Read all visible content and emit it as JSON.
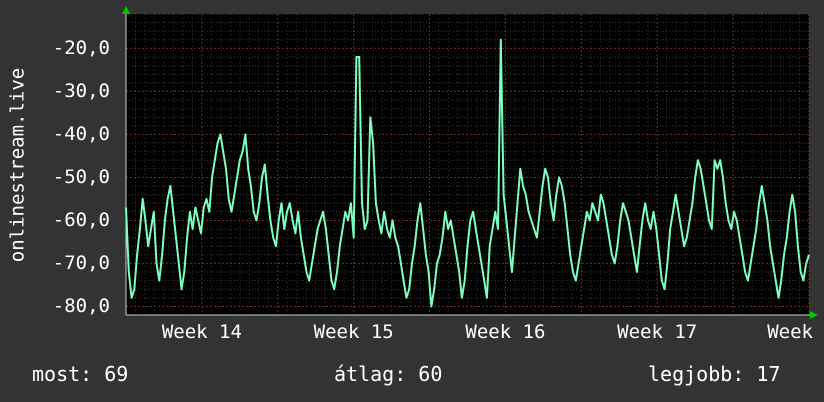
{
  "chart_data": {
    "type": "line",
    "ylabel": "onlinestream.live",
    "y_ticks": [
      -20,
      -30,
      -40,
      -50,
      -60,
      -70,
      -80
    ],
    "y_tick_labels": [
      "-20,0",
      "-30,0",
      "-40,0",
      "-50,0",
      "-60,0",
      "-70,0",
      "-80,0"
    ],
    "ylim": [
      -82,
      -12
    ],
    "x_tick_labels": [
      "Week 14",
      "Week 15",
      "Week 16",
      "Week 17",
      "Week"
    ],
    "x_tick_positions": [
      1,
      3,
      5,
      7,
      9
    ],
    "xlim": [
      0,
      9
    ],
    "grid": true,
    "colors": {
      "background": "#333333",
      "plot": "#000000",
      "grid": "#444444",
      "line": "#7fffbf",
      "axis": "#ffffff",
      "arrow": "#00cc00"
    },
    "series": [
      {
        "values": [
          -57,
          -72,
          -78,
          -76,
          -68,
          -62,
          -55,
          -60,
          -66,
          -62,
          -58,
          -70,
          -74,
          -68,
          -60,
          -55,
          -52,
          -58,
          -64,
          -70,
          -76,
          -72,
          -64,
          -58,
          -62,
          -57,
          -60,
          -63,
          -57,
          -55,
          -58,
          -50,
          -46,
          -42,
          -40,
          -44,
          -48,
          -55,
          -58,
          -54,
          -50,
          -46,
          -44,
          -40,
          -48,
          -52,
          -58,
          -60,
          -56,
          -50,
          -47,
          -54,
          -60,
          -64,
          -66,
          -60,
          -56,
          -62,
          -58,
          -56,
          -60,
          -63,
          -58,
          -64,
          -68,
          -72,
          -74,
          -70,
          -66,
          -62,
          -60,
          -58,
          -62,
          -68,
          -74,
          -76,
          -72,
          -66,
          -62,
          -58,
          -60,
          -56,
          -64,
          -22,
          -22,
          -56,
          -62,
          -60,
          -36,
          -42,
          -56,
          -60,
          -63,
          -58,
          -62,
          -64,
          -60,
          -64,
          -66,
          -70,
          -74,
          -78,
          -76,
          -70,
          -66,
          -60,
          -56,
          -62,
          -68,
          -72,
          -80,
          -76,
          -70,
          -68,
          -64,
          -58,
          -62,
          -60,
          -64,
          -68,
          -72,
          -78,
          -74,
          -66,
          -60,
          -58,
          -62,
          -66,
          -70,
          -74,
          -78,
          -66,
          -62,
          -58,
          -62,
          -18,
          -54,
          -60,
          -66,
          -72,
          -64,
          -56,
          -48,
          -52,
          -54,
          -58,
          -60,
          -62,
          -64,
          -58,
          -52,
          -48,
          -50,
          -56,
          -60,
          -54,
          -50,
          -52,
          -56,
          -62,
          -68,
          -72,
          -74,
          -70,
          -66,
          -62,
          -58,
          -60,
          -56,
          -58,
          -60,
          -54,
          -56,
          -60,
          -64,
          -68,
          -70,
          -66,
          -60,
          -56,
          -58,
          -60,
          -64,
          -68,
          -72,
          -66,
          -60,
          -56,
          -60,
          -62,
          -58,
          -62,
          -68,
          -74,
          -76,
          -70,
          -62,
          -58,
          -54,
          -58,
          -62,
          -66,
          -64,
          -60,
          -56,
          -50,
          -46,
          -48,
          -52,
          -56,
          -60,
          -62,
          -46,
          -48,
          -46,
          -50,
          -56,
          -60,
          -62,
          -58,
          -60,
          -64,
          -68,
          -72,
          -74,
          -70,
          -66,
          -62,
          -56,
          -52,
          -56,
          -60,
          -66,
          -70,
          -74,
          -78,
          -74,
          -68,
          -64,
          -58,
          -54,
          -58,
          -66,
          -72,
          -74,
          -70,
          -68
        ]
      }
    ]
  },
  "stats": {
    "now": "most: 69",
    "avg": "átlag: 60",
    "best": "legjobb: 17"
  }
}
